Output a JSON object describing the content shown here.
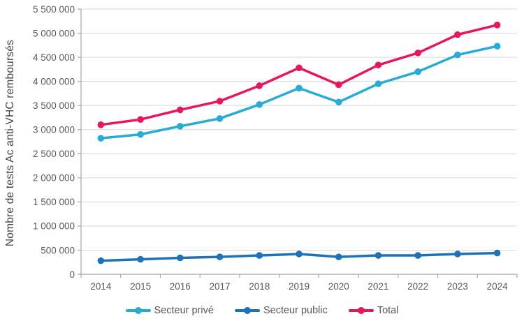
{
  "chart_data": {
    "type": "line",
    "title": "",
    "xlabel": "",
    "ylabel": "Nombre de tests Ac anti-VHC remboursés",
    "categories": [
      "2014",
      "2015",
      "2016",
      "2017",
      "2018",
      "2019",
      "2020",
      "2021",
      "2022",
      "2023",
      "2024"
    ],
    "series": [
      {
        "name": "Secteur privé",
        "color": "#29ABD8",
        "values": [
          2820000,
          2900000,
          3070000,
          3230000,
          3520000,
          3860000,
          3570000,
          3950000,
          4200000,
          4550000,
          4730000
        ]
      },
      {
        "name": "Secteur public",
        "color": "#1E72B8",
        "values": [
          280000,
          310000,
          340000,
          360000,
          390000,
          420000,
          360000,
          390000,
          390000,
          420000,
          440000
        ]
      },
      {
        "name": "Total",
        "color": "#E6175C",
        "values": [
          3100000,
          3210000,
          3410000,
          3590000,
          3910000,
          4280000,
          3930000,
          4340000,
          4590000,
          4970000,
          5170000
        ]
      }
    ],
    "ylim": [
      0,
      5500000
    ],
    "y_tick_step": 500000,
    "y_tick_labels": [
      "0",
      "500 000",
      "1 000 000",
      "1 500 000",
      "2 000 000",
      "2 500 000",
      "3 000 000",
      "3 500 000",
      "4 000 000",
      "4 500 000",
      "5 000 000",
      "5 500 000"
    ],
    "grid": "horizontal",
    "legend_position": "bottom"
  },
  "colors": {
    "background": "#FFFFFF",
    "gridline": "#D9D9D9",
    "axis": "#A6A6A6",
    "tick_text": "#595959",
    "axis_title_text": "#444444"
  }
}
